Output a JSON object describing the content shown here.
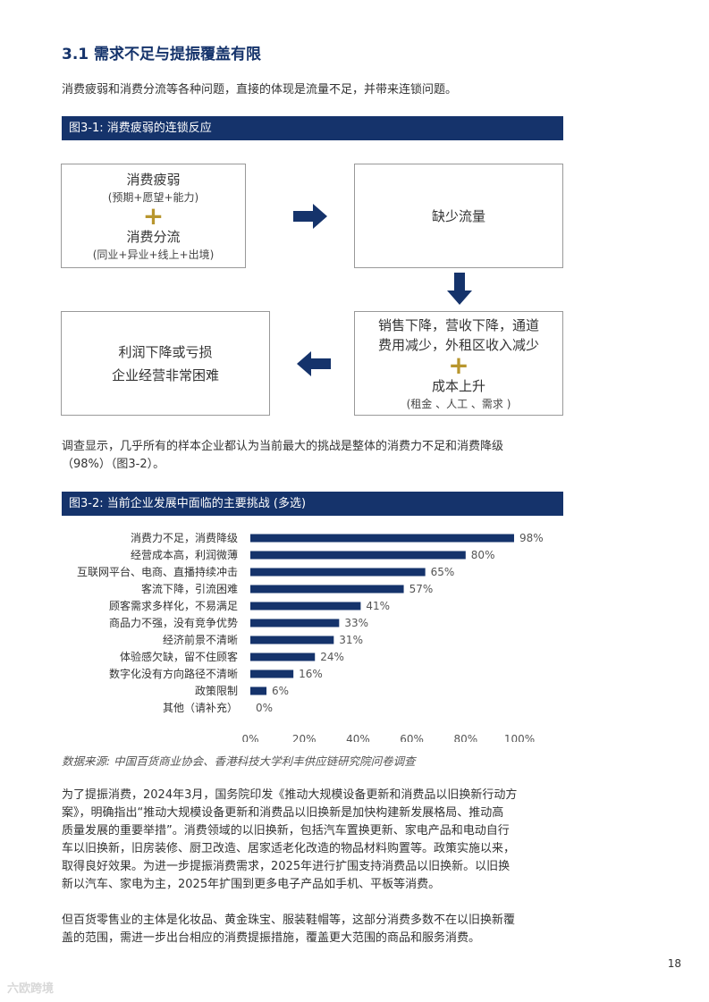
{
  "heading": "3.1 需求不足与提振覆盖有限",
  "intro": "消费疲弱和消费分流等各种问题，直接的体现是流量不足，并带来连锁问题。",
  "figure1": {
    "title": "图3-1: 消费疲弱的连锁反应",
    "box1": {
      "line1": "消费疲弱",
      "line1_sub": "(预期+愿望+能力)",
      "plus": "+",
      "line2": "消费分流",
      "line2_sub": "(同业+异业+线上+出境)"
    },
    "box2": {
      "text": "缺少流量"
    },
    "box3": {
      "line1": "销售下降，营收下降，通道",
      "line2": "费用减少，外租区收入减少",
      "plus": "+",
      "line3": "成本上升",
      "line3_sub": "(租金 、人工 、需求 )"
    },
    "box4": {
      "line1": "利润下降或亏损",
      "line2": "企业经营非常困难"
    }
  },
  "survey_text_line1": "调查显示，几乎所有的样本企业都认为当前最大的挑战是整体的消费力不足和消费降级",
  "survey_text_line2": "（98%）（图3-2）。",
  "figure2": {
    "title": "图3-2: 当前企业发展中面临的主要挑战 (多选)"
  },
  "chart_data": {
    "type": "bar",
    "orientation": "horizontal",
    "title": "图3-2: 当前企业发展中面临的主要挑战 (多选)",
    "categories": [
      "消费力不足，消费降级",
      "经营成本高，利润微薄",
      "互联网平台、电商、直播持续冲击",
      "客流下降，引流困难",
      "顾客需求多样化，不易满足",
      "商品力不强，没有竞争优势",
      "经济前景不清晰",
      "体验感欠缺，留不住顾客",
      "数字化没有方向路径不清晰",
      "政策限制",
      "其他（请补充）"
    ],
    "values": [
      98,
      80,
      65,
      57,
      41,
      33,
      31,
      24,
      16,
      6,
      0
    ],
    "value_labels": [
      "98%",
      "80%",
      "65%",
      "57%",
      "41%",
      "33%",
      "31%",
      "24%",
      "16%",
      "6%",
      "0%"
    ],
    "xticks": [
      "0%",
      "20%",
      "40%",
      "60%",
      "80%",
      "100%"
    ],
    "xlim": [
      0,
      100
    ],
    "bar_color": "#15336b",
    "grid": false
  },
  "source": "数据来源: 中国百货商业协会、香港科技大学利丰供应链研究院问卷调查",
  "para1": [
    "为了提振消费，2024年3月，国务院印发《推动大规模设备更新和消费品以旧换新行动方",
    "案》，明确指出“推动大规模设备更新和消费品以旧换新是加快构建新发展格局、推动高",
    "质量发展的重要举措”。消费领域的以旧换新，包括汽车置换更新、家电产品和电动自行",
    "车以旧换新，旧房装修、厨卫改造、居家适老化改造的物品材料购置等。政策实施以来，",
    "取得良好效果。为进一步提振消费需求，2025年进行扩围支持消费品以旧换新。以旧换",
    "新以汽车、家电为主，2025年扩围到更多电子产品如手机、平板等消费。"
  ],
  "para2": [
    "但百货零售业的主体是化妆品、黄金珠宝、服装鞋帽等，这部分消费多数不在以旧换新覆",
    "盖的范围，需进一步出台相应的消费提振措施，覆盖更大范围的商品和服务消费。"
  ],
  "page_number": "18",
  "watermark": "六欧跨境",
  "colors": {
    "navy": "#15336b",
    "gold": "#b8962e"
  }
}
